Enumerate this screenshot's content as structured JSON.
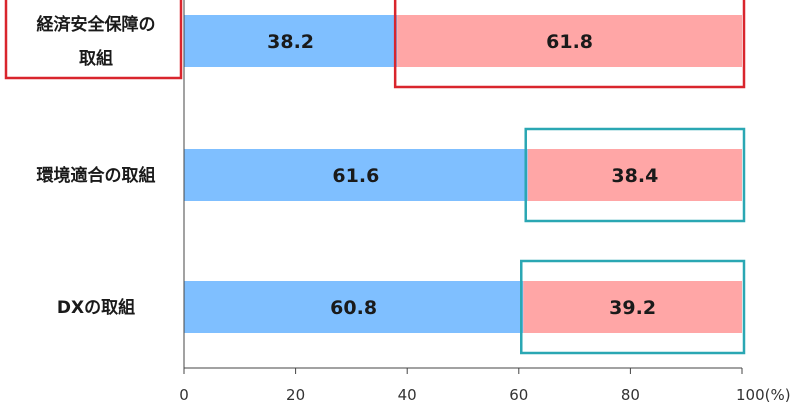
{
  "chart_data": {
    "type": "bar",
    "stacked": true,
    "orientation": "horizontal",
    "categories": [
      [
        "経済安全保障の",
        "取組"
      ],
      [
        "環境適合の取組"
      ],
      [
        "DXの取組"
      ]
    ],
    "series": [
      {
        "values": [
          38.2,
          61.6,
          60.8
        ],
        "labels": [
          "38.2",
          "61.6",
          "60.8"
        ],
        "color": "#7fbfff"
      },
      {
        "values": [
          61.8,
          38.4,
          39.2
        ],
        "labels": [
          "61.8",
          "38.4",
          "39.2"
        ],
        "color": "#ffa6a6"
      }
    ],
    "xlim": [
      0,
      100
    ],
    "x_ticks": [
      {
        "value": 0,
        "label": "0"
      },
      {
        "value": 20,
        "label": "20"
      },
      {
        "value": 40,
        "label": "40"
      },
      {
        "value": 60,
        "label": "60"
      },
      {
        "value": 80,
        "label": "80"
      },
      {
        "value": 100,
        "label": "100(%)"
      }
    ],
    "grid": false,
    "highlights": [
      {
        "target": "category-label",
        "category": 0,
        "color": "#d9252d"
      },
      {
        "target": "segment",
        "category": 0,
        "series": 1,
        "color": "#d9252d"
      },
      {
        "target": "segment",
        "category": 1,
        "series": 1,
        "color": "#2aa7b3"
      },
      {
        "target": "segment",
        "category": 2,
        "series": 1,
        "color": "#2aa7b3"
      }
    ]
  }
}
